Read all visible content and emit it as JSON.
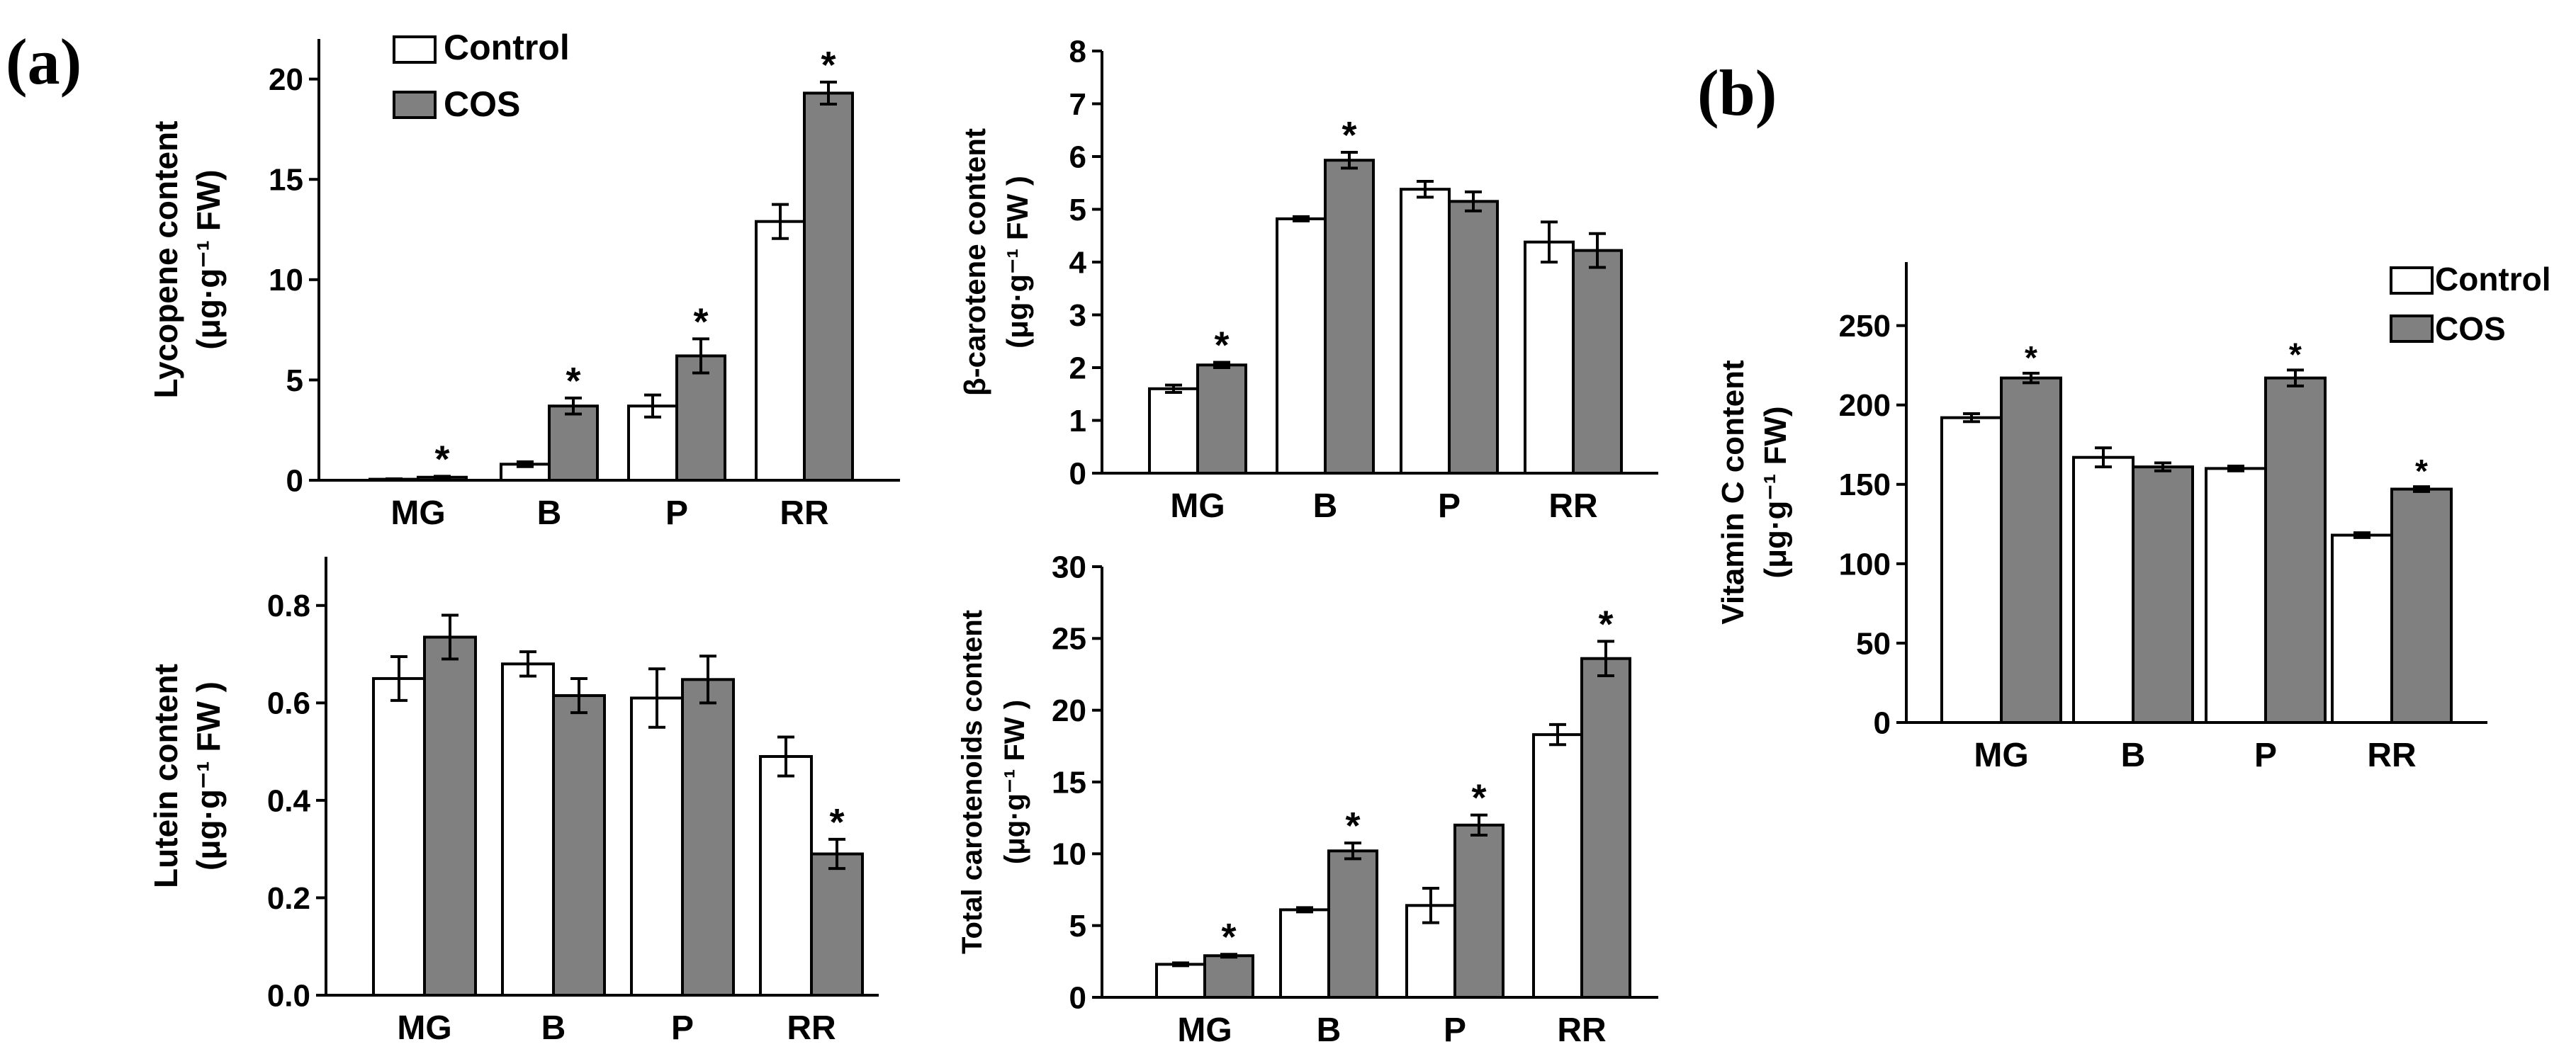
{
  "panel_labels": {
    "a": "(a)",
    "b": "(b)"
  },
  "legend": {
    "control": "Control",
    "cos": "COS"
  },
  "colors": {
    "control": "#ffffff",
    "cos": "#808080",
    "stroke": "#000000"
  },
  "chart_data": [
    {
      "id": "lycopene",
      "type": "bar",
      "ylabel_line1": "Lycopene content",
      "ylabel_line2": "(μg·g⁻¹ FW)",
      "categories": [
        "MG",
        "B",
        "P",
        "RR"
      ],
      "ylim": [
        0,
        22
      ],
      "yticks": [
        0,
        5,
        10,
        15,
        20
      ],
      "series": [
        {
          "name": "Control",
          "values": [
            0.05,
            0.8,
            3.7,
            12.9
          ],
          "errors": [
            0.02,
            0.12,
            0.55,
            0.85
          ]
        },
        {
          "name": "COS",
          "values": [
            0.15,
            3.7,
            6.2,
            19.3
          ],
          "errors": [
            0.05,
            0.4,
            0.85,
            0.55
          ]
        }
      ],
      "significant": [
        true,
        true,
        true,
        true
      ]
    },
    {
      "id": "beta-carotene",
      "type": "bar",
      "ylabel_line1": "β-carotene content",
      "ylabel_line2": "(μg·g⁻¹ FW )",
      "categories": [
        "MG",
        "B",
        "P",
        "RR"
      ],
      "ylim": [
        0,
        8
      ],
      "yticks": [
        0,
        1,
        2,
        3,
        4,
        5,
        6,
        7,
        8
      ],
      "series": [
        {
          "name": "Control",
          "values": [
            1.6,
            4.82,
            5.38,
            4.38
          ],
          "errors": [
            0.07,
            0.04,
            0.15,
            0.38
          ]
        },
        {
          "name": "COS",
          "values": [
            2.05,
            5.93,
            5.15,
            4.22
          ],
          "errors": [
            0.05,
            0.15,
            0.18,
            0.32
          ]
        }
      ],
      "significant": [
        true,
        true,
        false,
        false
      ]
    },
    {
      "id": "lutein",
      "type": "bar",
      "ylabel_line1": "Lutein content",
      "ylabel_line2": "(μg·g⁻¹ FW )",
      "categories": [
        "MG",
        "B",
        "P",
        "RR"
      ],
      "ylim": [
        0,
        0.9
      ],
      "yticks": [
        "0.0",
        "0.2",
        "0.4",
        "0.6",
        "0.8"
      ],
      "series": [
        {
          "name": "Control",
          "values": [
            0.65,
            0.68,
            0.61,
            0.49
          ],
          "errors": [
            0.045,
            0.025,
            0.06,
            0.04
          ]
        },
        {
          "name": "COS",
          "values": [
            0.735,
            0.615,
            0.648,
            0.29
          ],
          "errors": [
            0.045,
            0.035,
            0.048,
            0.03
          ]
        }
      ],
      "significant": [
        false,
        false,
        false,
        true
      ]
    },
    {
      "id": "total-carotenoids",
      "type": "bar",
      "ylabel_line1": "Total carotenoids content",
      "ylabel_line2": "(μg·g⁻¹ FW )",
      "categories": [
        "MG",
        "B",
        "P",
        "RR"
      ],
      "ylim": [
        0,
        30
      ],
      "yticks": [
        0,
        5,
        10,
        15,
        20,
        25,
        30
      ],
      "series": [
        {
          "name": "Control",
          "values": [
            2.3,
            6.1,
            6.4,
            18.3
          ],
          "errors": [
            0.1,
            0.15,
            1.2,
            0.7
          ]
        },
        {
          "name": "COS",
          "values": [
            2.9,
            10.2,
            12.0,
            23.6
          ],
          "errors": [
            0.1,
            0.55,
            0.7,
            1.2
          ]
        }
      ],
      "significant": [
        true,
        true,
        true,
        true
      ]
    },
    {
      "id": "vitamin-c",
      "type": "bar",
      "ylabel_line1": "Vitamin C content",
      "ylabel_line2": "(μg·g⁻¹ FW)",
      "categories": [
        "MG",
        "B",
        "P",
        "RR"
      ],
      "ylim": [
        0,
        290
      ],
      "yticks": [
        0,
        50,
        100,
        150,
        200,
        250
      ],
      "series": [
        {
          "name": "Control",
          "values": [
            192,
            167,
            160,
            118
          ],
          "errors": [
            2.5,
            6,
            1.5,
            1.5
          ]
        },
        {
          "name": "COS",
          "values": [
            217,
            161,
            217,
            147
          ],
          "errors": [
            3,
            2.5,
            5,
            1.5
          ]
        }
      ],
      "significant": [
        true,
        false,
        true,
        true
      ]
    }
  ]
}
